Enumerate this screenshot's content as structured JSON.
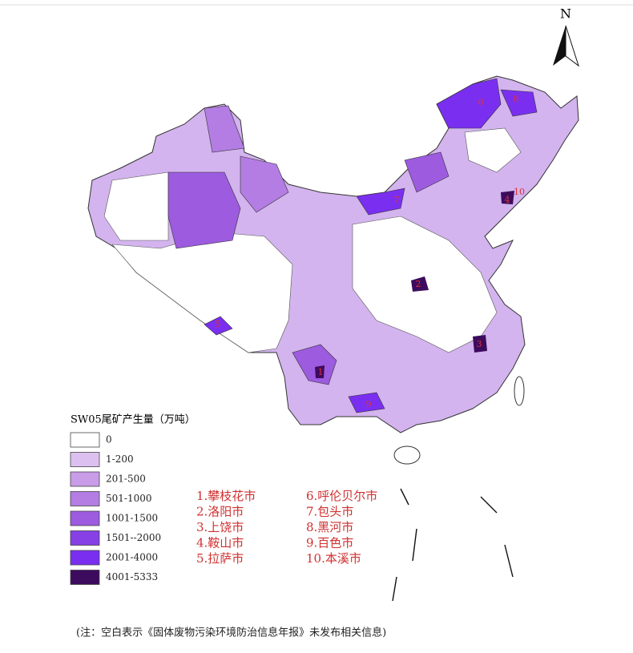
{
  "north": "N",
  "legend": {
    "title": "SW05尾矿产生量（万吨）",
    "items": [
      {
        "label": "0",
        "color": "#ffffff"
      },
      {
        "label": "1-200",
        "color": "#dcc0f0"
      },
      {
        "label": "201-500",
        "color": "#c99ce8"
      },
      {
        "label": "501-1000",
        "color": "#b37de3"
      },
      {
        "label": "1001-1500",
        "color": "#9d5be0"
      },
      {
        "label": "1501--2000",
        "color": "#8640e6"
      },
      {
        "label": "2001-4000",
        "color": "#7a2ff0"
      },
      {
        "label": "4001-5333",
        "color": "#3d0b5e"
      }
    ]
  },
  "cities": [
    "1.攀枝花市",
    "2.洛阳市",
    "3.上饶市",
    "4.鞍山市",
    "5.拉萨市",
    "6.呼伦贝尔市",
    "7.包头市",
    "8.黑河市",
    "9.百色市",
    "10.本溪市"
  ],
  "map_labels": [
    "6",
    "8",
    "7",
    "10",
    "4",
    "2",
    "3",
    "5",
    "1",
    "9"
  ],
  "note": "(注：空白表示《固体废物污染环境防治信息年报》未发布相关信息)"
}
